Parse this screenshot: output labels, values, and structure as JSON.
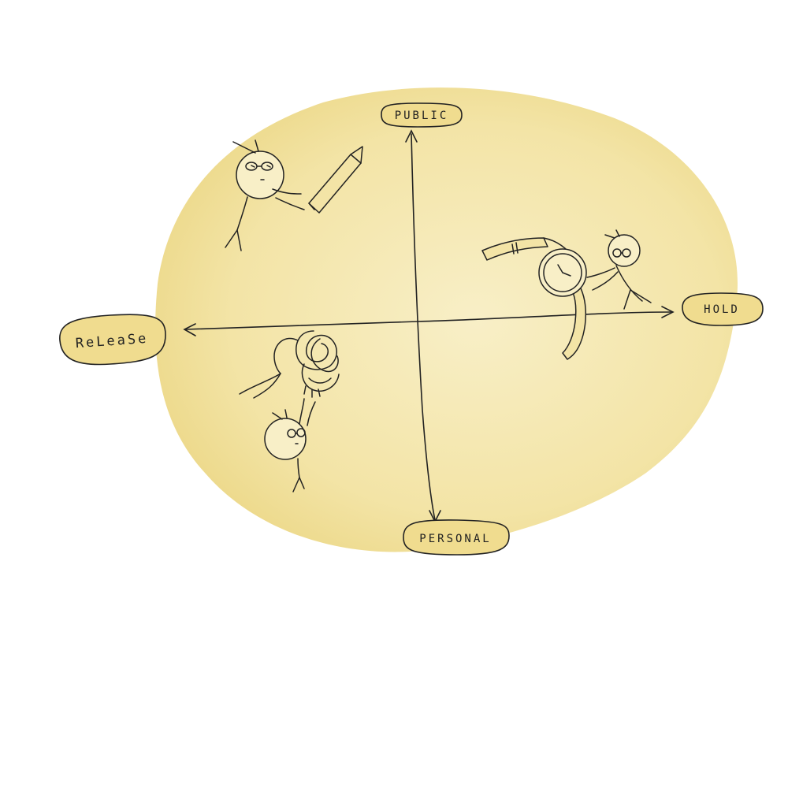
{
  "diagram": {
    "type": "quadrant",
    "colors": {
      "background": "#ffffff",
      "blob": "#f3e4a6",
      "blob_center": "#f8efc7",
      "label_fill": "#f0dc8f",
      "ink": "#222222"
    },
    "axes": {
      "top": "PUBLIC",
      "bottom": "PERSONAL",
      "left": "ReLeaSe",
      "right": "HOLD"
    },
    "illustrations": [
      {
        "quadrant": "top-left",
        "figure": "stick-figure",
        "object": "pencil-icon"
      },
      {
        "quadrant": "top-right",
        "figure": "stick-figure",
        "object": "wristwatch-icon"
      },
      {
        "quadrant": "bottom-left",
        "figure": "stick-figure",
        "object": "tangled-yarn-icon"
      }
    ]
  }
}
